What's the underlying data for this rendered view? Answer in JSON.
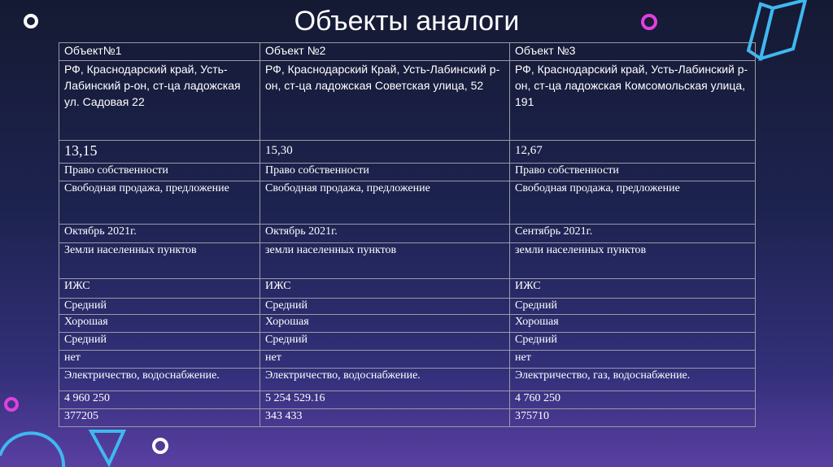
{
  "title": "Объекты аналоги",
  "table": {
    "header": [
      "Объект№1",
      "Объект №2",
      "Объект №3"
    ],
    "rows": [
      [
        "РФ, Краснодарский край, Усть-Лабинский р-он, ст-ца ладожская ул. Садовая 22",
        "РФ, Краснодарский Край, Усть-Лабинский р-он, ст-ца ладожская Советская улица, 52",
        "РФ, Краснодарский край, Усть-Лабинский р-он, ст-ца ладожская Комсомольская улица, 191"
      ],
      [
        "13,15",
        "15,30",
        "12,67"
      ],
      [
        "Право собственности",
        "Право собственности",
        "Право собственности"
      ],
      [
        "Свободная продажа, предложение",
        "Свободная продажа, предложение",
        "Свободная продажа, предложение"
      ],
      [
        "Октябрь 2021г.",
        "Октябрь 2021г.",
        "Сентябрь 2021г."
      ],
      [
        "Земли населенных пунктов",
        "земли населенных пунктов",
        "земли населенных пунктов"
      ],
      [
        "ИЖС",
        "ИЖС",
        "ИЖС"
      ],
      [
        "Средний",
        "Средний",
        "Средний"
      ],
      [
        "Хорошая",
        "Хорошая",
        "Хорошая"
      ],
      [
        "Средний",
        "Средний",
        "Средний"
      ],
      [
        "нет",
        "нет",
        "нет"
      ],
      [
        "Электричество, водоснабжение.",
        "Электричество, водоснабжение.",
        "Электричество, газ, водоснабжение."
      ],
      [
        "4 960 250",
        "5 254 529.16",
        "4 760 250"
      ],
      [
        "377205",
        "343 433",
        "375710"
      ]
    ]
  },
  "colors": {
    "accent_cyan": "#3fb8f0",
    "accent_pink": "#e040e0",
    "border": "#9a9aa6"
  }
}
